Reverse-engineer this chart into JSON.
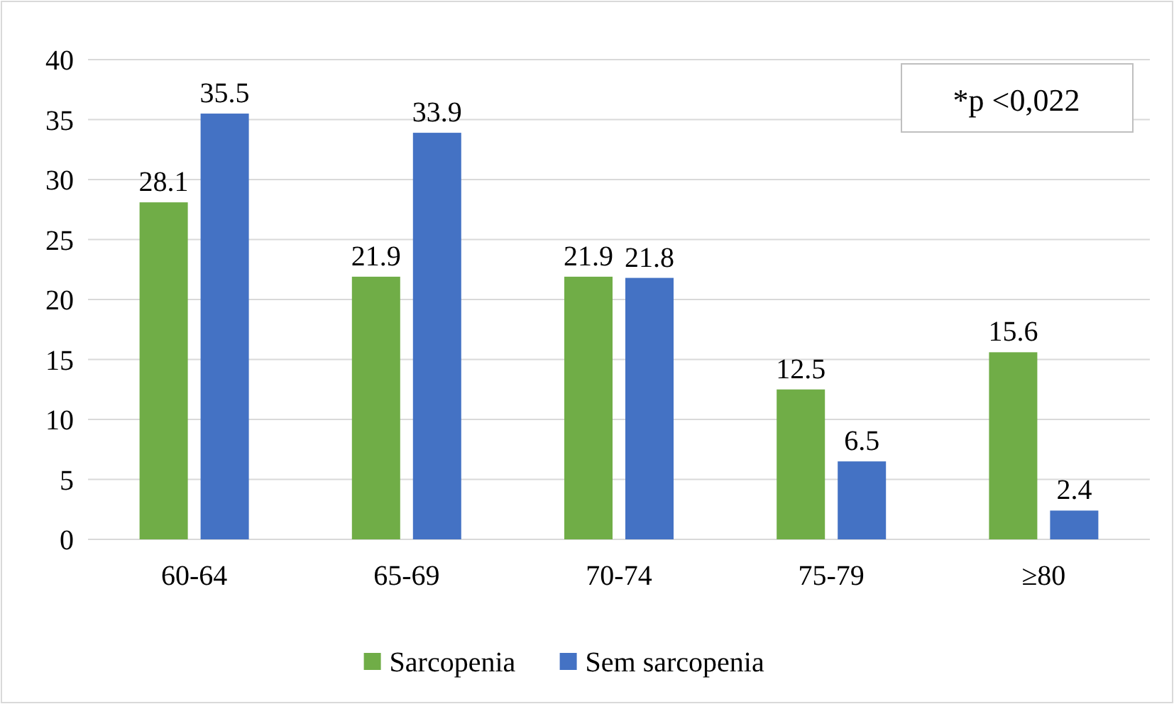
{
  "chart_data": {
    "type": "bar",
    "categories": [
      "60-64",
      "65-69",
      "70-74",
      "75-79",
      "≥80"
    ],
    "series": [
      {
        "name": "Sarcopenia",
        "color": "#70ad47",
        "values": [
          28.1,
          21.9,
          21.9,
          12.5,
          15.6
        ]
      },
      {
        "name": "Sem sarcopenia",
        "color": "#4472c4",
        "values": [
          35.5,
          33.9,
          21.8,
          6.5,
          2.4
        ]
      }
    ],
    "ylim": [
      0,
      40
    ],
    "yticks": [
      0,
      5,
      10,
      15,
      20,
      25,
      30,
      35,
      40
    ],
    "grid": "y",
    "legend": "bottom",
    "data_labels": true,
    "annotations": [
      "*p <0,022"
    ]
  }
}
